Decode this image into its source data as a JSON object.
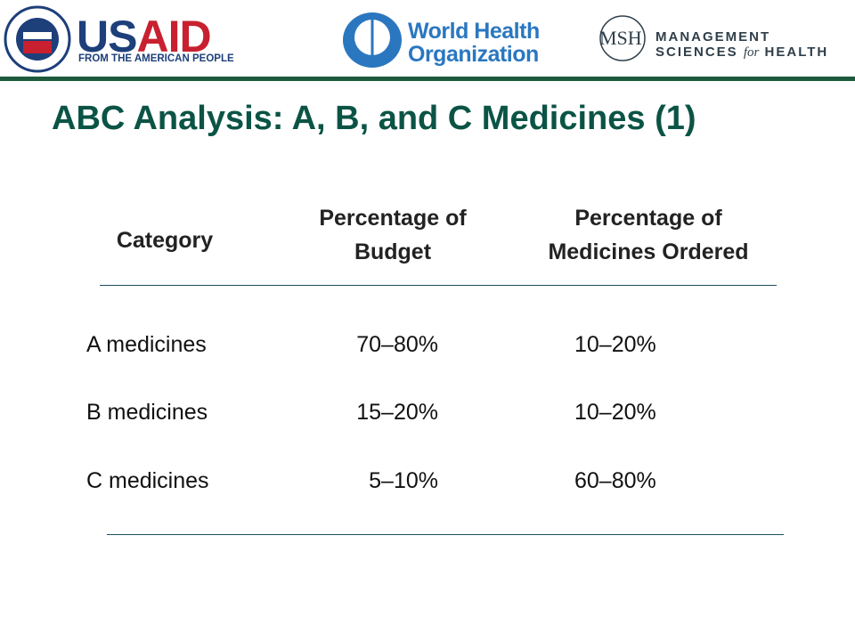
{
  "header": {
    "usaid": {
      "us": "US",
      "aid": "AID",
      "tagline": "FROM THE AMERICAN PEOPLE"
    },
    "who": {
      "line1": "World Health",
      "line2": "Organization"
    },
    "msh": {
      "initials": "MSH",
      "line1": "MANAGEMENT",
      "line2a": "SCIENCES",
      "line2b": "for",
      "line2c": "HEALTH"
    }
  },
  "title": "ABC Analysis: A, B, and C Medicines (1)",
  "table": {
    "columns": [
      [
        "Category"
      ],
      [
        "Percentage of",
        "Budget"
      ],
      [
        "Percentage of",
        "Medicines Ordered"
      ]
    ],
    "rows": [
      [
        "A medicines",
        "70–80%",
        "10–20%"
      ],
      [
        "B medicines",
        "15–20%",
        "10–20%"
      ],
      [
        "C medicines",
        "5–10%",
        "60–80%"
      ]
    ]
  }
}
